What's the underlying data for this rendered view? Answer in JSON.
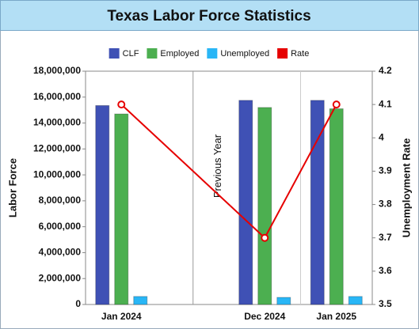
{
  "chart_data": {
    "type": "bar",
    "title": "Texas Labor Force Statistics",
    "categories": [
      "Jan 2024",
      "Dec 2024",
      "Jan 2025"
    ],
    "series": [
      {
        "name": "CLF",
        "color": "#3f51b5",
        "type": "bar",
        "values": [
          15350000,
          15750000,
          15750000
        ]
      },
      {
        "name": "Employed",
        "color": "#4caf50",
        "type": "bar",
        "values": [
          14700000,
          15200000,
          15100000
        ]
      },
      {
        "name": "Unemployed",
        "color": "#29b6f6",
        "type": "bar",
        "values": [
          620000,
          550000,
          620000
        ]
      },
      {
        "name": "Rate",
        "color": "#e60000",
        "type": "line",
        "axis": "y2",
        "values": [
          4.1,
          3.7,
          4.1
        ]
      }
    ],
    "ylabel": "Labor Force",
    "y2label": "Unemployment Rate",
    "annotation": "Previous Year",
    "ylim": [
      0,
      18000000
    ],
    "yticks": [
      0,
      {
        "value": 2000000,
        "label": "2,000,000"
      },
      {
        "value": 4000000,
        "label": "4,000,000"
      },
      {
        "value": 6000000,
        "label": "6,000,000"
      },
      {
        "value": 8000000,
        "label": "8,000,000"
      },
      {
        "value": 10000000,
        "label": "10,000,000"
      },
      {
        "value": 12000000,
        "label": "12,000,000"
      },
      {
        "value": 14000000,
        "label": "14,000,000"
      },
      {
        "value": 16000000,
        "label": "16,000,000"
      },
      {
        "value": 18000000,
        "label": "18,000,000"
      }
    ],
    "y2lim": [
      3.5,
      4.2
    ],
    "y2ticks": [
      3.5,
      3.6,
      3.7,
      3.8,
      3.9,
      4,
      4.1,
      4.2
    ],
    "legend": "top"
  }
}
